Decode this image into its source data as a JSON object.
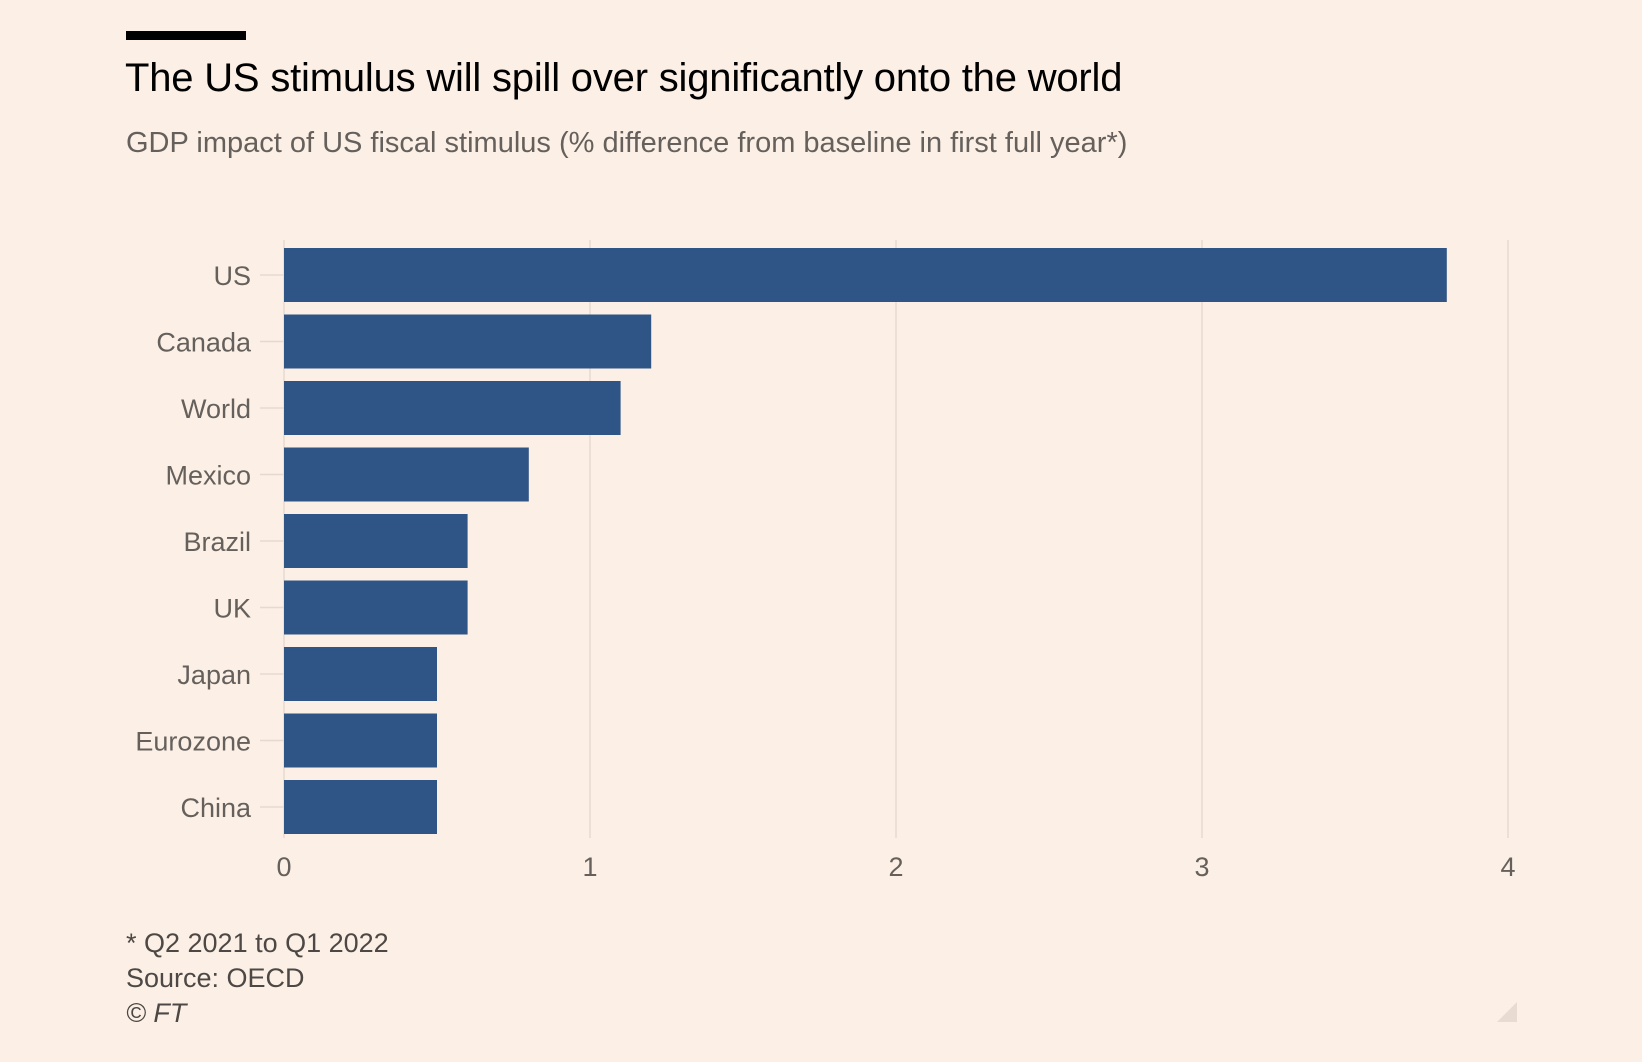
{
  "title": "The US stimulus will spill over significantly onto the world",
  "subtitle": "GDP impact of US fiscal stimulus (% difference from baseline in first full year*)",
  "footnote": "* Q2 2021 to Q1 2022",
  "source": "Source: OECD",
  "copyright": "© FT",
  "colors": {
    "background": "#fcf0e6",
    "bar": "#2f5486",
    "gridline": "#e6d9cf",
    "axis_text": "#66605c"
  },
  "chart_data": {
    "type": "bar",
    "orientation": "horizontal",
    "title": "The US stimulus will spill over significantly onto the world",
    "subtitle": "GDP impact of US fiscal stimulus (% difference from baseline in first full year*)",
    "categories": [
      "US",
      "Canada",
      "World",
      "Mexico",
      "Brazil",
      "UK",
      "Japan",
      "Eurozone",
      "China"
    ],
    "values": [
      3.8,
      1.2,
      1.1,
      0.8,
      0.6,
      0.6,
      0.5,
      0.5,
      0.5
    ],
    "xlim": [
      0,
      4
    ],
    "xticks": [
      "0",
      "1",
      "2",
      "3",
      "4"
    ],
    "xlabel": "",
    "ylabel": "",
    "grid": true,
    "legend": "none"
  }
}
